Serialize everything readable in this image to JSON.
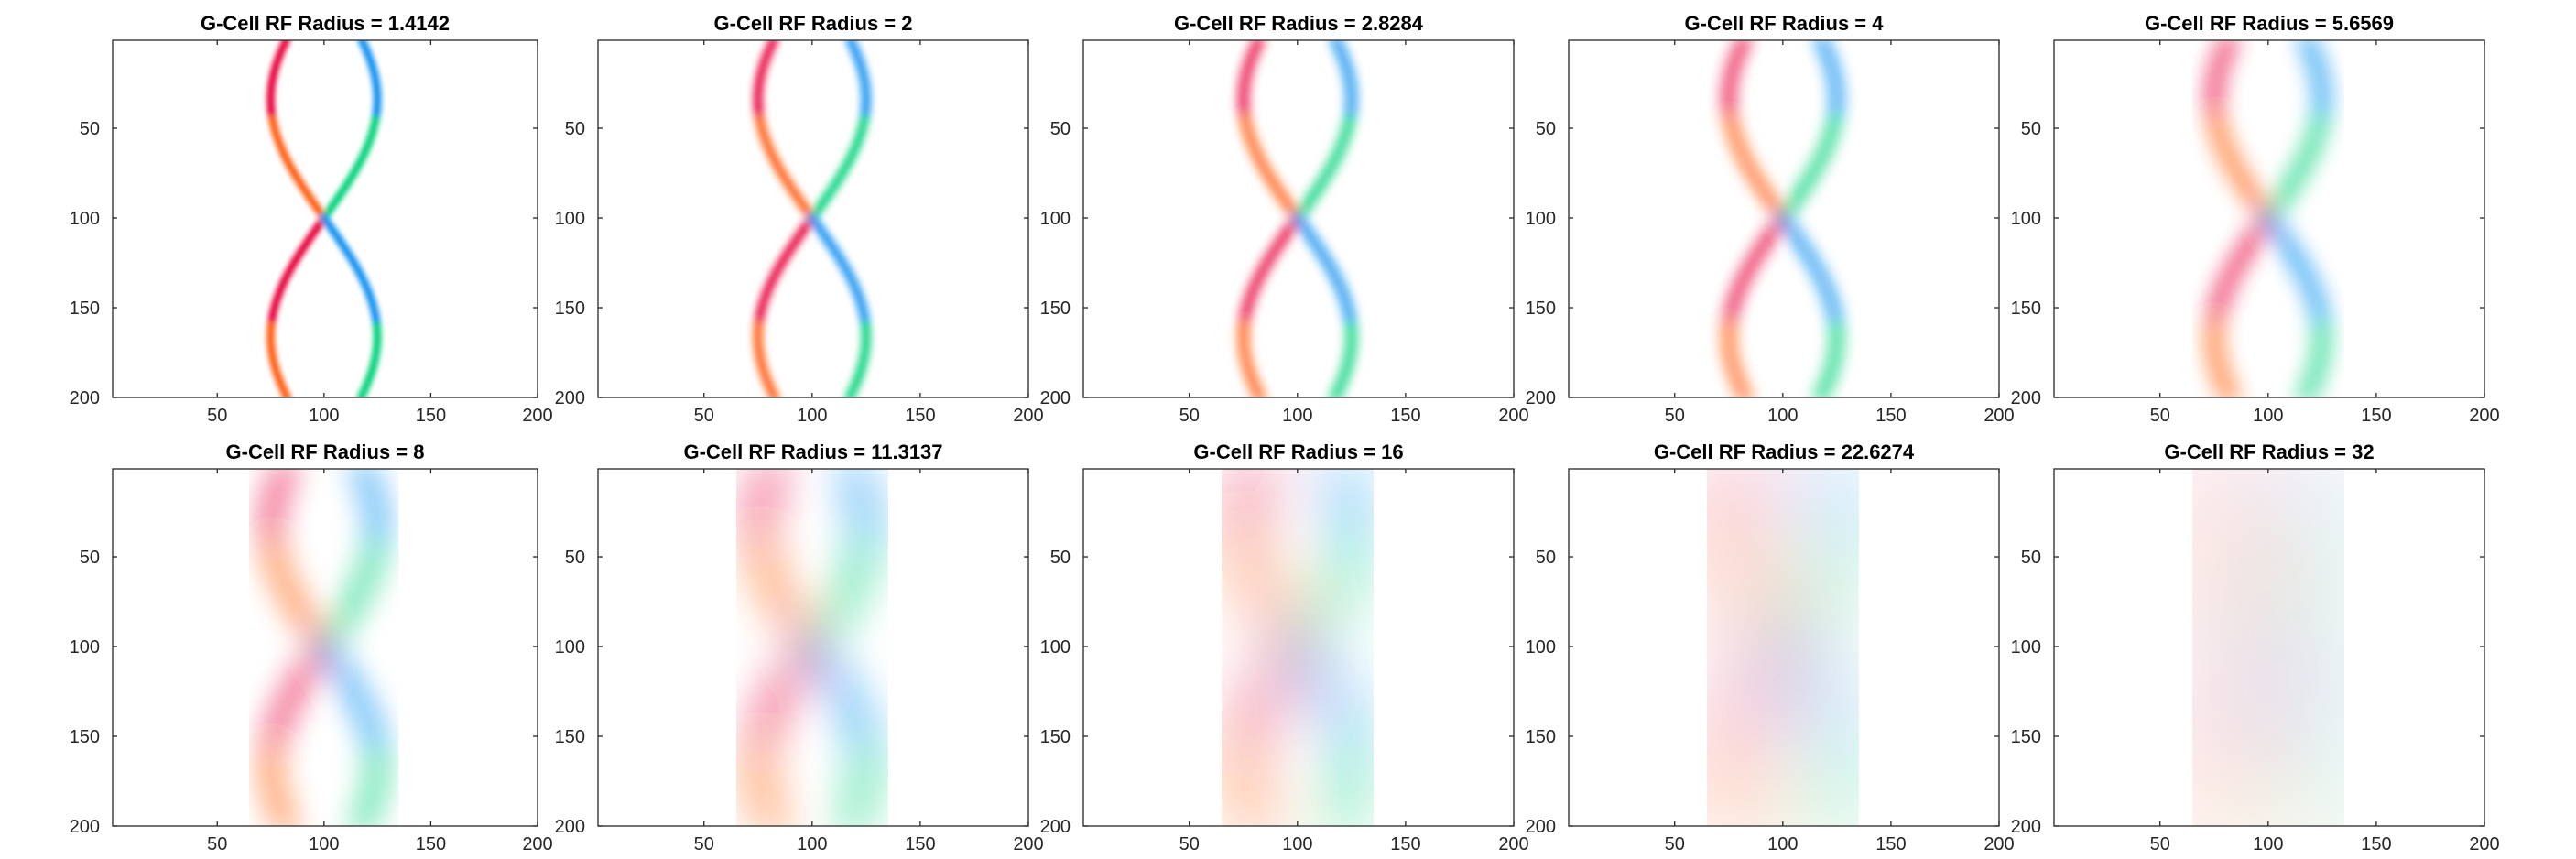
{
  "figure": {
    "grid_rows": 2,
    "grid_cols": 5
  },
  "chart_data": [
    {
      "type": "heatmap",
      "title": "G-Cell RF Radius = 1.4142",
      "radius": 1.4142,
      "xlim": [
        1,
        200
      ],
      "ylim": [
        1,
        200
      ],
      "y_reversed": true,
      "xticks": [
        50,
        100,
        150,
        200
      ],
      "yticks": [
        50,
        100,
        150,
        200
      ],
      "grid": false,
      "legend": "none"
    },
    {
      "type": "heatmap",
      "title": "G-Cell RF Radius = 2",
      "radius": 2,
      "xlim": [
        1,
        200
      ],
      "ylim": [
        1,
        200
      ],
      "y_reversed": true,
      "xticks": [
        50,
        100,
        150,
        200
      ],
      "yticks": [
        50,
        100,
        150,
        200
      ],
      "grid": false,
      "legend": "none"
    },
    {
      "type": "heatmap",
      "title": "G-Cell RF Radius = 2.8284",
      "radius": 2.8284,
      "xlim": [
        1,
        200
      ],
      "ylim": [
        1,
        200
      ],
      "y_reversed": true,
      "xticks": [
        50,
        100,
        150,
        200
      ],
      "yticks": [
        50,
        100,
        150,
        200
      ],
      "grid": false,
      "legend": "none"
    },
    {
      "type": "heatmap",
      "title": "G-Cell RF Radius = 4",
      "radius": 4,
      "xlim": [
        1,
        200
      ],
      "ylim": [
        1,
        200
      ],
      "y_reversed": true,
      "xticks": [
        50,
        100,
        150,
        200
      ],
      "yticks": [
        50,
        100,
        150,
        200
      ],
      "grid": false,
      "legend": "none"
    },
    {
      "type": "heatmap",
      "title": "G-Cell RF Radius = 5.6569",
      "radius": 5.6569,
      "xlim": [
        1,
        200
      ],
      "ylim": [
        1,
        200
      ],
      "y_reversed": true,
      "xticks": [
        50,
        100,
        150,
        200
      ],
      "yticks": [
        50,
        100,
        150,
        200
      ],
      "grid": false,
      "legend": "none"
    },
    {
      "type": "heatmap",
      "title": "G-Cell RF Radius = 8",
      "radius": 8,
      "xlim": [
        1,
        200
      ],
      "ylim": [
        1,
        200
      ],
      "y_reversed": true,
      "xticks": [
        50,
        100,
        150,
        200
      ],
      "yticks": [
        50,
        100,
        150,
        200
      ],
      "grid": false,
      "legend": "none"
    },
    {
      "type": "heatmap",
      "title": "G-Cell RF Radius = 11.3137",
      "radius": 11.3137,
      "xlim": [
        1,
        200
      ],
      "ylim": [
        1,
        200
      ],
      "y_reversed": true,
      "xticks": [
        50,
        100,
        150,
        200
      ],
      "yticks": [
        50,
        100,
        150,
        200
      ],
      "grid": false,
      "legend": "none"
    },
    {
      "type": "heatmap",
      "title": "G-Cell RF Radius = 16",
      "radius": 16,
      "xlim": [
        1,
        200
      ],
      "ylim": [
        1,
        200
      ],
      "y_reversed": true,
      "xticks": [
        50,
        100,
        150,
        200
      ],
      "yticks": [
        50,
        100,
        150,
        200
      ],
      "grid": false,
      "legend": "none"
    },
    {
      "type": "heatmap",
      "title": "G-Cell RF Radius = 22.6274",
      "radius": 22.6274,
      "xlim": [
        1,
        200
      ],
      "ylim": [
        1,
        200
      ],
      "y_reversed": true,
      "xticks": [
        50,
        100,
        150,
        200
      ],
      "yticks": [
        50,
        100,
        150,
        200
      ],
      "grid": false,
      "legend": "none"
    },
    {
      "type": "heatmap",
      "title": "G-Cell RF Radius = 32",
      "radius": 32,
      "xlim": [
        1,
        200
      ],
      "ylim": [
        1,
        200
      ],
      "y_reversed": true,
      "xticks": [
        50,
        100,
        150,
        200
      ],
      "yticks": [
        50,
        100,
        150,
        200
      ],
      "grid": false,
      "legend": "none"
    }
  ],
  "palette": {
    "left_upper": "#e8003a",
    "left_lower": "#ff5a10",
    "right_upper": "#0a8ff0",
    "right_lower": "#00d27a",
    "cyan": "#00c8f0"
  }
}
